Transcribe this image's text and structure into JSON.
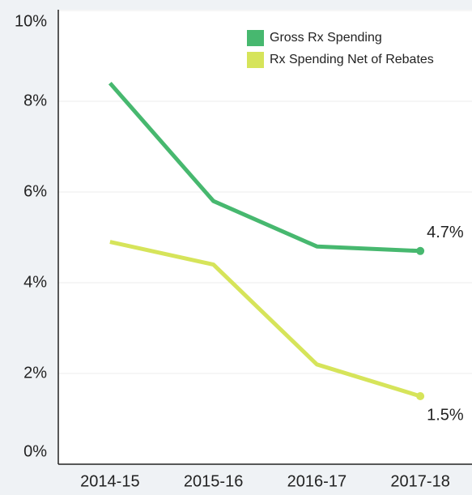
{
  "chart_data": {
    "type": "line",
    "categories": [
      "2014-15",
      "2015-16",
      "2016-17",
      "2017-18"
    ],
    "series": [
      {
        "name": "Gross Rx Spending",
        "color": "#47b86f",
        "values": [
          8.4,
          5.8,
          4.8,
          4.7
        ],
        "value_labels": [
          null,
          null,
          null,
          "4.7%"
        ]
      },
      {
        "name": "Rx Spending Net of Rebates",
        "color": "#d6e45a",
        "values": [
          4.9,
          4.4,
          2.2,
          1.5
        ],
        "value_labels": [
          null,
          null,
          null,
          "1.5%"
        ]
      }
    ],
    "ylim": [
      0,
      10
    ],
    "yticks": [
      {
        "value": 0,
        "label": "0%"
      },
      {
        "value": 2,
        "label": "2%"
      },
      {
        "value": 4,
        "label": "4%"
      },
      {
        "value": 6,
        "label": "6%"
      },
      {
        "value": 8,
        "label": "8%"
      },
      {
        "value": 10,
        "label": "10%"
      }
    ],
    "grid": true,
    "legend": "top-right"
  }
}
